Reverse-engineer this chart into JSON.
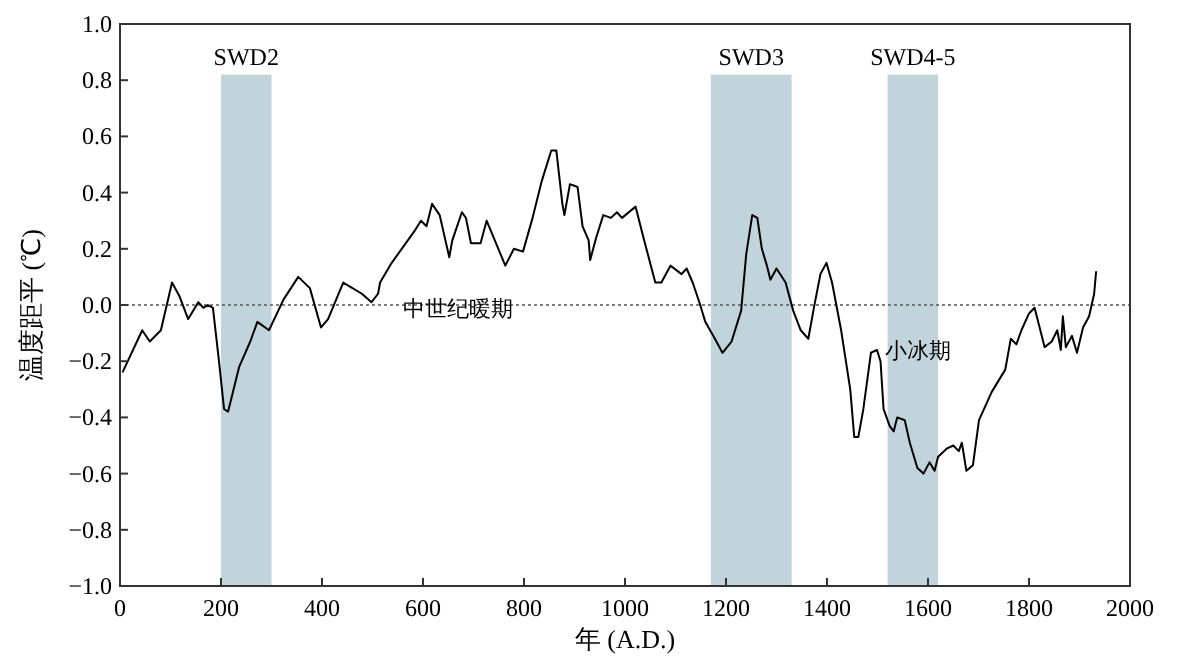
{
  "chart_data": {
    "type": "line",
    "xlabel": "年 (A.D.)",
    "ylabel": "温度距平 (℃)",
    "color": "#000000",
    "xlim": [
      0,
      2000
    ],
    "ylim": [
      -1.0,
      1.0
    ],
    "xticks": [
      0,
      200,
      400,
      600,
      800,
      1000,
      1200,
      1400,
      1600,
      1800,
      2000
    ],
    "yticks": [
      {
        "value": -1.0,
        "label": "−1.0"
      },
      {
        "value": -0.8,
        "label": "−0.8"
      },
      {
        "value": -0.6,
        "label": "−0.6"
      },
      {
        "value": -0.4,
        "label": "−0.4"
      },
      {
        "value": -0.2,
        "label": "−0.2"
      },
      {
        "value": 0,
        "label": "0.0"
      },
      {
        "value": 0.2,
        "label": "0.2"
      },
      {
        "value": 0.4,
        "label": "0.4"
      },
      {
        "value": 0.6,
        "label": "0.6"
      },
      {
        "value": 0.8,
        "label": "0.8"
      },
      {
        "value": 1.0,
        "label": "1.0"
      }
    ],
    "bands": [
      {
        "axis": "x",
        "from": 200,
        "to": 300,
        "label": "SWD2",
        "color": "#c1d3db"
      },
      {
        "axis": "x",
        "from": 1170,
        "to": 1330,
        "label": "SWD3",
        "color": "#c1d3db"
      },
      {
        "axis": "x",
        "from": 1520,
        "to": 1620,
        "label": "SWD4-5",
        "color": "#c1d3db"
      }
    ],
    "ref_lines": [
      {
        "axis": "y",
        "value": 0,
        "color": "#555555",
        "line_style": "dotted"
      }
    ],
    "annotations": [
      "中世纪暖期",
      "小冰期"
    ],
    "x": [
      5,
      44,
      59,
      81,
      103,
      118,
      135,
      155,
      165,
      174,
      184,
      196,
      206,
      214,
      236,
      258,
      272,
      295,
      324,
      353,
      376,
      398,
      412,
      442,
      479,
      498,
      511,
      515,
      538,
      582,
      596,
      607,
      618,
      633,
      652,
      658,
      677,
      685,
      695,
      714,
      726,
      763,
      780,
      798,
      817,
      835,
      854,
      864,
      876,
      880,
      891,
      906,
      916,
      928,
      931,
      943,
      957,
      972,
      984,
      994,
      1021,
      1038,
      1060,
      1072,
      1090,
      1112,
      1122,
      1134,
      1149,
      1159,
      1178,
      1193,
      1211,
      1230,
      1240,
      1252,
      1262,
      1271,
      1281,
      1288,
      1300,
      1318,
      1333,
      1348,
      1363,
      1374,
      1387,
      1399,
      1410,
      1428,
      1446,
      1454,
      1462,
      1472,
      1487,
      1499,
      1506,
      1512,
      1524,
      1532,
      1539,
      1554,
      1564,
      1579,
      1591,
      1603,
      1613,
      1620,
      1638,
      1650,
      1661,
      1667,
      1676,
      1689,
      1701,
      1716,
      1726,
      1753,
      1764,
      1775,
      1785,
      1800,
      1811,
      1831,
      1845,
      1856,
      1863,
      1867,
      1873,
      1885,
      1895,
      1907,
      1919,
      1929,
      1933
    ],
    "values": [
      -0.24,
      -0.09,
      -0.13,
      -0.09,
      0.08,
      0.03,
      -0.05,
      0.01,
      -0.01,
      0.0,
      -0.01,
      -0.2,
      -0.37,
      -0.38,
      -0.22,
      -0.13,
      -0.06,
      -0.09,
      0.02,
      0.1,
      0.06,
      -0.08,
      -0.05,
      0.08,
      0.04,
      0.01,
      0.04,
      0.08,
      0.15,
      0.26,
      0.3,
      0.28,
      0.36,
      0.32,
      0.17,
      0.23,
      0.33,
      0.31,
      0.22,
      0.22,
      0.3,
      0.14,
      0.2,
      0.19,
      0.31,
      0.44,
      0.55,
      0.55,
      0.36,
      0.32,
      0.43,
      0.42,
      0.28,
      0.23,
      0.16,
      0.24,
      0.32,
      0.31,
      0.33,
      0.31,
      0.35,
      0.23,
      0.08,
      0.08,
      0.14,
      0.11,
      0.13,
      0.08,
      0.0,
      -0.06,
      -0.12,
      -0.17,
      -0.13,
      -0.02,
      0.18,
      0.32,
      0.31,
      0.2,
      0.14,
      0.09,
      0.13,
      0.08,
      -0.02,
      -0.09,
      -0.12,
      -0.01,
      0.11,
      0.15,
      0.08,
      -0.09,
      -0.3,
      -0.47,
      -0.47,
      -0.37,
      -0.17,
      -0.16,
      -0.2,
      -0.37,
      -0.43,
      -0.45,
      -0.4,
      -0.41,
      -0.49,
      -0.58,
      -0.6,
      -0.56,
      -0.59,
      -0.54,
      -0.51,
      -0.5,
      -0.52,
      -0.49,
      -0.59,
      -0.57,
      -0.41,
      -0.35,
      -0.31,
      -0.23,
      -0.12,
      -0.14,
      -0.09,
      -0.03,
      -0.01,
      -0.15,
      -0.13,
      -0.09,
      -0.16,
      -0.04,
      -0.15,
      -0.11,
      -0.17,
      -0.08,
      -0.04,
      0.04,
      0.12
    ]
  }
}
